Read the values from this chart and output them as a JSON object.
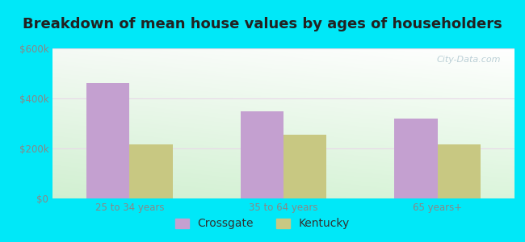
{
  "title": "Breakdown of mean house values by ages of householders",
  "categories": [
    "25 to 34 years",
    "35 to 64 years",
    "65 years+"
  ],
  "crossgate_values": [
    460000,
    350000,
    320000
  ],
  "kentucky_values": [
    215000,
    255000,
    215000
  ],
  "ylim": [
    0,
    600000
  ],
  "yticks": [
    0,
    200000,
    400000,
    600000
  ],
  "ytick_labels": [
    "$0",
    "$200k",
    "$400k",
    "$600k"
  ],
  "bar_width": 0.28,
  "crossgate_color": "#c4a0d0",
  "kentucky_color": "#c8c882",
  "bg_outer": "#00e8f8",
  "legend_crossgate": "Crossgate",
  "legend_kentucky": "Kentucky",
  "title_fontsize": 13,
  "tick_fontsize": 8.5,
  "legend_fontsize": 10,
  "watermark": "City-Data.com",
  "grid_color": "#e8d8e8",
  "tick_color": "#888888"
}
